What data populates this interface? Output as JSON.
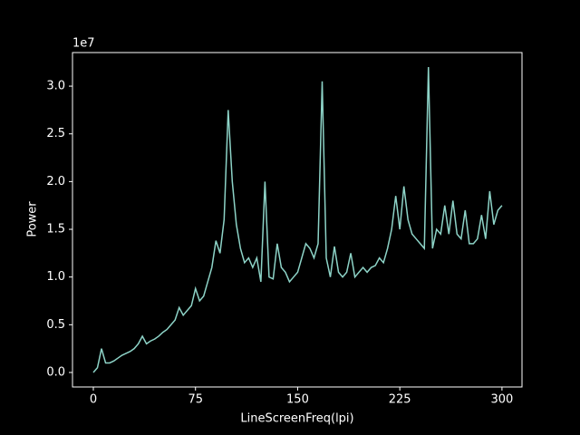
{
  "chart_data": {
    "type": "line",
    "x_label": "LineScreenFreq(lpi)",
    "y_label": "Power",
    "y_offset_label": "1e7",
    "xlim": [
      -15.3,
      314.7
    ],
    "ylim": [
      -0.152,
      3.352
    ],
    "xticks": [
      0,
      75,
      150,
      225,
      300
    ],
    "yticks": [
      {
        "value": 0,
        "label": "0.0"
      },
      {
        "value": 0.5,
        "label": "0.5"
      },
      {
        "value": 1,
        "label": "1.0"
      },
      {
        "value": 1.5,
        "label": "1.5"
      },
      {
        "value": 2,
        "label": "2.0"
      },
      {
        "value": 2.5,
        "label": "2.5"
      },
      {
        "value": 3,
        "label": "3.0"
      }
    ],
    "grid": false,
    "x": [
      0,
      3,
      6,
      9,
      12,
      15,
      18,
      21,
      24,
      27,
      30,
      33,
      36,
      39,
      42,
      45,
      48,
      51,
      54,
      57,
      60,
      63,
      66,
      69,
      72,
      75,
      78,
      81,
      84,
      87,
      90,
      93,
      96,
      99,
      102,
      105,
      108,
      111,
      114,
      117,
      120,
      123,
      126,
      129,
      132,
      135,
      138,
      141,
      144,
      147,
      150,
      153,
      156,
      159,
      162,
      165,
      168,
      171,
      174,
      177,
      180,
      183,
      186,
      189,
      192,
      195,
      198,
      201,
      204,
      207,
      210,
      213,
      216,
      219,
      222,
      225,
      228,
      231,
      234,
      237,
      240,
      243,
      246,
      249,
      252,
      255,
      258,
      261,
      264,
      267,
      270,
      273,
      276,
      279,
      282,
      285,
      288,
      291,
      294,
      297,
      300
    ],
    "series": [
      {
        "color": "#8dd3c7",
        "values": [
          0.0,
          0.05,
          0.25,
          0.1,
          0.1,
          0.12,
          0.15,
          0.18,
          0.2,
          0.22,
          0.25,
          0.3,
          0.38,
          0.3,
          0.33,
          0.35,
          0.38,
          0.42,
          0.45,
          0.5,
          0.55,
          0.68,
          0.6,
          0.65,
          0.7,
          0.88,
          0.75,
          0.8,
          0.95,
          1.1,
          1.38,
          1.25,
          1.6,
          2.75,
          2.0,
          1.55,
          1.3,
          1.15,
          1.2,
          1.1,
          1.2,
          0.95,
          2.0,
          1.0,
          0.98,
          1.35,
          1.1,
          1.05,
          0.95,
          1.0,
          1.05,
          1.2,
          1.35,
          1.3,
          1.2,
          1.35,
          3.05,
          1.2,
          1.0,
          1.32,
          1.05,
          1.0,
          1.05,
          1.25,
          1.0,
          1.05,
          1.1,
          1.05,
          1.1,
          1.12,
          1.2,
          1.15,
          1.3,
          1.5,
          1.85,
          1.5,
          1.95,
          1.6,
          1.45,
          1.4,
          1.35,
          1.3,
          3.2,
          1.3,
          1.5,
          1.45,
          1.75,
          1.45,
          1.8,
          1.45,
          1.4,
          1.7,
          1.35,
          1.35,
          1.4,
          1.65,
          1.4,
          1.9,
          1.55,
          1.7,
          1.75
        ]
      }
    ]
  }
}
